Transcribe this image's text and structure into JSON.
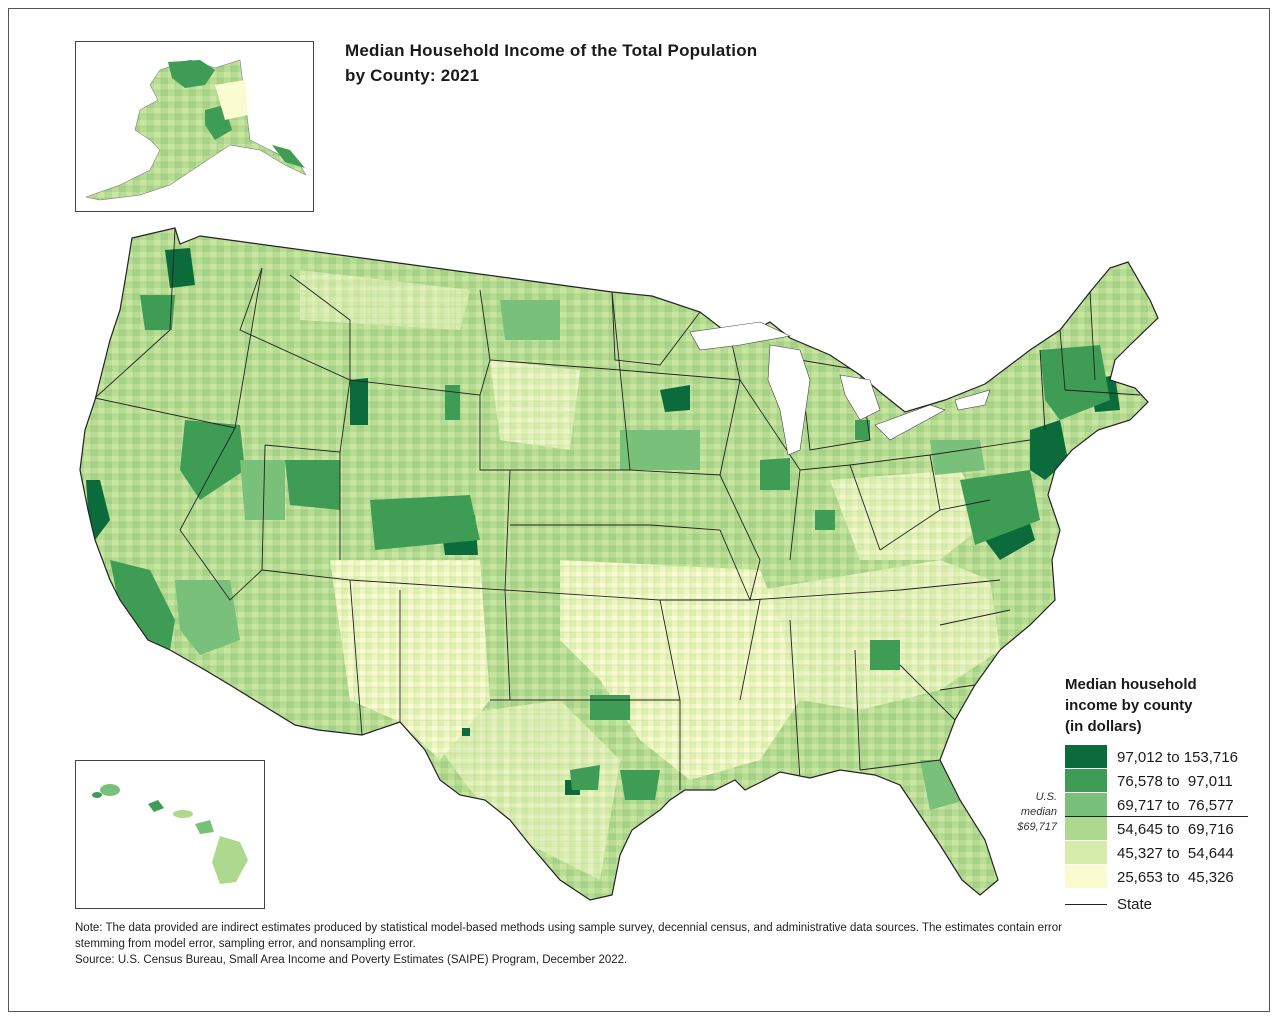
{
  "title": {
    "line1": "Median Household Income of the Total Population",
    "line2": "by County: 2021"
  },
  "legend": {
    "title_lines": [
      "Median household",
      "income by county",
      "(in dollars)"
    ],
    "classes": [
      {
        "label": "97,012 to 153,716",
        "color": "#0b6b3a"
      },
      {
        "label": "76,578 to  97,011",
        "color": "#3f9c55"
      },
      {
        "label": "69,717 to  76,577",
        "color": "#79c07a"
      },
      {
        "label": "54,645 to  69,716",
        "color": "#aed88e"
      },
      {
        "label": "45,327 to  54,644",
        "color": "#d6ecaa"
      },
      {
        "label": "25,653 to  45,326",
        "color": "#fafbd0"
      }
    ],
    "median_note": [
      "U.S.",
      "median",
      "$69,717"
    ],
    "state_label": "State"
  },
  "insets": [
    "Alaska",
    "Hawaii"
  ],
  "notes": {
    "note": "Note: The data provided are indirect estimates produced by statistical model-based methods using sample survey, decennial census, and administrative data sources. The estimates contain error stemming from model error, sampling error, and nonsampling error.",
    "source": "Source: U.S. Census Bureau, Small Area Income and Poverty Estimates (SAIPE) Program, December 2022."
  }
}
